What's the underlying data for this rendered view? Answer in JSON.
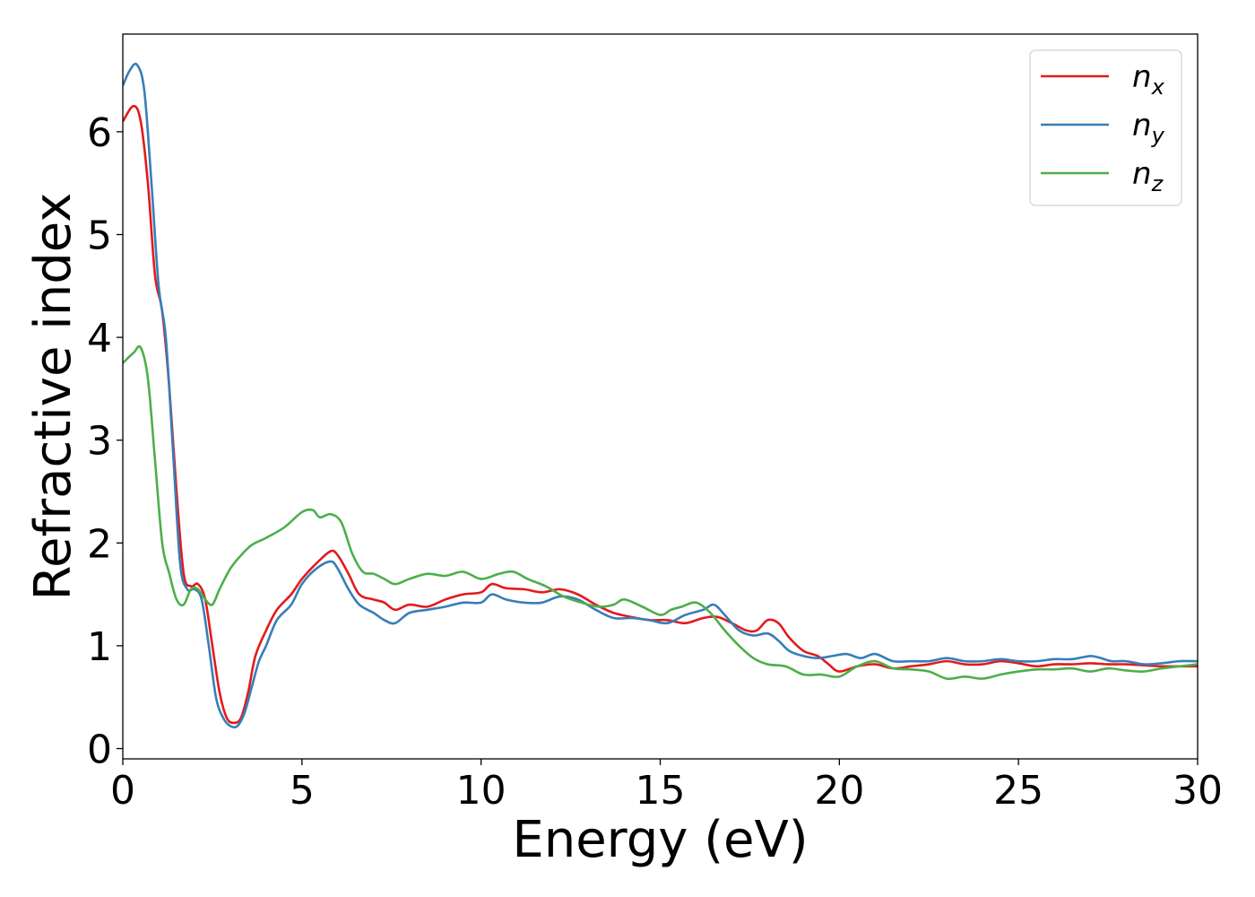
{
  "chart_data": {
    "type": "line",
    "title": "",
    "xlabel": "Energy (eV)",
    "ylabel": "Refractive index",
    "xlim": [
      0,
      30
    ],
    "ylim": [
      -0.1,
      6.95
    ],
    "xticks": [
      0,
      5,
      10,
      15,
      20,
      25,
      30
    ],
    "yticks": [
      0,
      1,
      2,
      3,
      4,
      5,
      6
    ],
    "grid": false,
    "legend_position": "top-right",
    "series": [
      {
        "name": "n_x",
        "label_base": "n",
        "label_sub": "x",
        "color": "#e41a1c",
        "x": [
          0,
          0.3,
          0.5,
          0.7,
          0.9,
          1.1,
          1.3,
          1.5,
          1.7,
          1.9,
          2.1,
          2.3,
          2.5,
          2.7,
          2.9,
          3.1,
          3.3,
          3.5,
          3.7,
          4.0,
          4.3,
          4.7,
          5.0,
          5.4,
          5.8,
          6.0,
          6.3,
          6.6,
          7.0,
          7.3,
          7.6,
          8.0,
          8.5,
          9.0,
          9.5,
          10.0,
          10.3,
          10.7,
          11.2,
          11.7,
          12.2,
          12.7,
          13.2,
          13.7,
          14.2,
          14.7,
          15.2,
          15.7,
          16.2,
          16.6,
          17.0,
          17.4,
          17.7,
          18.0,
          18.3,
          18.6,
          19.0,
          19.4,
          19.7,
          20.0,
          20.5,
          21.0,
          21.5,
          22.0,
          22.5,
          23.0,
          23.5,
          24.0,
          24.5,
          25.0,
          25.5,
          26.0,
          26.5,
          27.0,
          27.5,
          28.0,
          28.5,
          29.0,
          29.5,
          30.0
        ],
        "y": [
          6.1,
          6.25,
          6.1,
          5.5,
          4.6,
          4.25,
          3.5,
          2.5,
          1.7,
          1.58,
          1.6,
          1.45,
          1.0,
          0.55,
          0.3,
          0.25,
          0.3,
          0.55,
          0.9,
          1.15,
          1.35,
          1.5,
          1.65,
          1.8,
          1.92,
          1.88,
          1.7,
          1.5,
          1.45,
          1.42,
          1.35,
          1.4,
          1.38,
          1.45,
          1.5,
          1.52,
          1.6,
          1.56,
          1.55,
          1.52,
          1.55,
          1.5,
          1.4,
          1.32,
          1.28,
          1.25,
          1.25,
          1.22,
          1.27,
          1.28,
          1.22,
          1.15,
          1.15,
          1.25,
          1.22,
          1.08,
          0.95,
          0.9,
          0.82,
          0.75,
          0.8,
          0.82,
          0.78,
          0.8,
          0.82,
          0.85,
          0.82,
          0.82,
          0.85,
          0.83,
          0.8,
          0.82,
          0.82,
          0.83,
          0.82,
          0.82,
          0.81,
          0.8,
          0.8,
          0.8
        ]
      },
      {
        "name": "n_y",
        "label_base": "n",
        "label_sub": "y",
        "color": "#377eb8",
        "x": [
          0,
          0.2,
          0.4,
          0.6,
          0.8,
          1.0,
          1.2,
          1.4,
          1.6,
          1.8,
          2.0,
          2.2,
          2.4,
          2.6,
          2.8,
          3.0,
          3.2,
          3.4,
          3.6,
          3.8,
          4.0,
          4.3,
          4.7,
          5.0,
          5.4,
          5.8,
          6.0,
          6.3,
          6.6,
          7.0,
          7.3,
          7.6,
          8.0,
          8.5,
          9.0,
          9.5,
          10.0,
          10.3,
          10.7,
          11.2,
          11.7,
          12.2,
          12.7,
          13.2,
          13.7,
          14.2,
          14.7,
          15.2,
          15.7,
          16.2,
          16.5,
          16.8,
          17.2,
          17.6,
          18.0,
          18.3,
          18.6,
          19.0,
          19.4,
          19.8,
          20.2,
          20.6,
          21.0,
          21.5,
          22.0,
          22.5,
          23.0,
          23.5,
          24.0,
          24.5,
          25.0,
          25.5,
          26.0,
          26.5,
          27.0,
          27.3,
          27.6,
          28.0,
          28.5,
          29.0,
          29.5,
          30.0
        ],
        "y": [
          6.45,
          6.6,
          6.65,
          6.4,
          5.5,
          4.5,
          4.0,
          2.9,
          1.8,
          1.55,
          1.55,
          1.45,
          1.0,
          0.5,
          0.3,
          0.22,
          0.22,
          0.35,
          0.6,
          0.85,
          1.0,
          1.25,
          1.4,
          1.6,
          1.75,
          1.82,
          1.75,
          1.55,
          1.4,
          1.32,
          1.25,
          1.22,
          1.32,
          1.35,
          1.38,
          1.42,
          1.42,
          1.5,
          1.45,
          1.42,
          1.42,
          1.48,
          1.45,
          1.35,
          1.27,
          1.27,
          1.25,
          1.22,
          1.3,
          1.35,
          1.4,
          1.3,
          1.15,
          1.1,
          1.12,
          1.05,
          0.95,
          0.9,
          0.88,
          0.9,
          0.92,
          0.88,
          0.92,
          0.85,
          0.85,
          0.85,
          0.88,
          0.85,
          0.85,
          0.87,
          0.85,
          0.85,
          0.87,
          0.87,
          0.9,
          0.88,
          0.85,
          0.85,
          0.82,
          0.83,
          0.85,
          0.85
        ]
      },
      {
        "name": "n_z",
        "label_base": "n",
        "label_sub": "z",
        "color": "#4daf4a",
        "x": [
          0,
          0.3,
          0.5,
          0.7,
          0.9,
          1.1,
          1.3,
          1.5,
          1.7,
          1.9,
          2.1,
          2.3,
          2.5,
          2.7,
          3.0,
          3.3,
          3.6,
          4.0,
          4.5,
          5.0,
          5.3,
          5.5,
          5.8,
          6.1,
          6.4,
          6.7,
          7.0,
          7.3,
          7.6,
          8.0,
          8.5,
          9.0,
          9.5,
          10.0,
          10.5,
          10.9,
          11.3,
          11.8,
          12.3,
          12.8,
          13.3,
          13.7,
          14.0,
          14.5,
          15.0,
          15.3,
          15.6,
          16.0,
          16.4,
          16.8,
          17.2,
          17.6,
          18.0,
          18.5,
          19.0,
          19.5,
          20.0,
          20.5,
          21.0,
          21.5,
          22.0,
          22.5,
          23.0,
          23.5,
          24.0,
          24.5,
          25.0,
          25.5,
          26.0,
          26.5,
          27.0,
          27.5,
          28.0,
          28.5,
          29.0,
          29.5,
          30.0
        ],
        "y": [
          3.75,
          3.85,
          3.9,
          3.6,
          2.8,
          2.0,
          1.7,
          1.45,
          1.4,
          1.55,
          1.55,
          1.45,
          1.4,
          1.55,
          1.75,
          1.88,
          1.98,
          2.05,
          2.15,
          2.3,
          2.32,
          2.25,
          2.28,
          2.2,
          1.9,
          1.72,
          1.7,
          1.65,
          1.6,
          1.65,
          1.7,
          1.68,
          1.72,
          1.65,
          1.7,
          1.72,
          1.65,
          1.58,
          1.48,
          1.42,
          1.38,
          1.4,
          1.45,
          1.38,
          1.3,
          1.35,
          1.38,
          1.42,
          1.32,
          1.15,
          1.0,
          0.88,
          0.82,
          0.8,
          0.72,
          0.72,
          0.7,
          0.8,
          0.85,
          0.78,
          0.77,
          0.75,
          0.68,
          0.7,
          0.68,
          0.72,
          0.75,
          0.77,
          0.77,
          0.78,
          0.75,
          0.78,
          0.76,
          0.75,
          0.78,
          0.8,
          0.82
        ]
      }
    ]
  }
}
